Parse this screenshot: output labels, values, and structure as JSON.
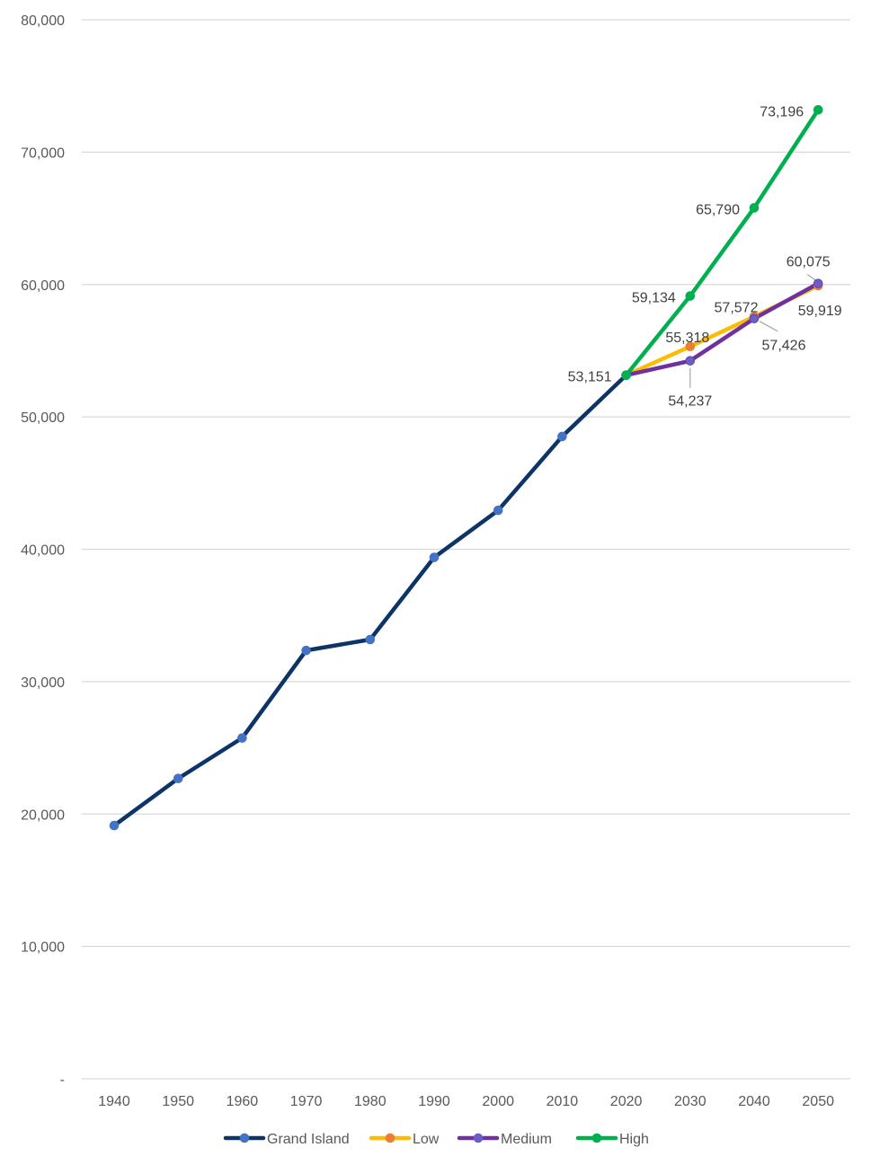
{
  "chart_data": {
    "type": "line",
    "title": "",
    "xlabel": "",
    "ylabel": "",
    "x": [
      "1940",
      "1950",
      "1960",
      "1970",
      "1980",
      "1990",
      "2000",
      "2010",
      "2020",
      "2030",
      "2040",
      "2050"
    ],
    "ylim": [
      0,
      80000
    ],
    "y_ticks": [
      0,
      10000,
      20000,
      30000,
      40000,
      50000,
      60000,
      70000,
      80000
    ],
    "y_tick_labels": [
      "-",
      "10,000",
      "20,000",
      "30,000",
      "40,000",
      "50,000",
      "60,000",
      "70,000",
      "80,000"
    ],
    "grid": "horizontal",
    "legend_position": "bottom",
    "series": [
      {
        "name": "Grand Island",
        "color": "#0d3466",
        "marker_color": "#4472c4",
        "values": [
          19130,
          22682,
          25742,
          32358,
          33180,
          39386,
          42940,
          48520,
          53151,
          null,
          null,
          null
        ],
        "labels": []
      },
      {
        "name": "Low",
        "color": "#fbbc05",
        "marker_color": "#ed7d31",
        "values": [
          null,
          null,
          null,
          null,
          null,
          null,
          null,
          null,
          53151,
          55318,
          57572,
          59919
        ],
        "labels": [
          {
            "x": "2030",
            "text": "55,318"
          },
          {
            "x": "2040",
            "text": "57,572"
          },
          {
            "x": "2050",
            "text": "59,919"
          }
        ]
      },
      {
        "name": "Medium",
        "color": "#7030a0",
        "marker_color": "#6f5cc4",
        "values": [
          null,
          null,
          null,
          null,
          null,
          null,
          null,
          null,
          53151,
          54237,
          57426,
          60075
        ],
        "labels": [
          {
            "x": "2030",
            "text": "54,237"
          },
          {
            "x": "2040",
            "text": "57,426"
          },
          {
            "x": "2050",
            "text": "60,075"
          }
        ]
      },
      {
        "name": "High",
        "color": "#00b050",
        "marker_color": "#00b050",
        "values": [
          null,
          null,
          null,
          null,
          null,
          null,
          null,
          null,
          53151,
          59134,
          65790,
          73196
        ],
        "labels": [
          {
            "x": "2020",
            "text": "53,151"
          },
          {
            "x": "2030",
            "text": "59,134"
          },
          {
            "x": "2040",
            "text": "65,790"
          },
          {
            "x": "2050",
            "text": "73,196"
          }
        ]
      }
    ]
  }
}
